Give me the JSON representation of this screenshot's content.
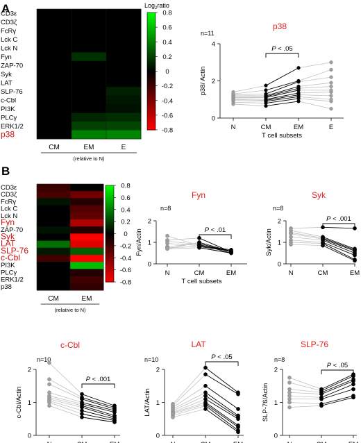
{
  "panels": {
    "A": {
      "letter": "A"
    },
    "B": {
      "letter": "B"
    }
  },
  "colors": {
    "high": "#00ff00",
    "mid": "#000000",
    "low": "#ff0000",
    "highlight_label": "#d01010",
    "open_point": "#a0a0a0",
    "open_line": "#c0c0c0",
    "filled_point": "#000000",
    "title": "#e02020"
  },
  "chart_data": [
    {
      "id": "heatmap-A",
      "type": "heatmap",
      "rows": [
        "CD3ε",
        "CD3ζ",
        "FcRγ",
        "Lck C",
        "Lck N",
        "Fyn",
        "ZAP-70",
        "Syk",
        "LAT",
        "SLP-76",
        "c-Cbl",
        "PI3K",
        "PLCγ",
        "ERK1/2",
        "p38"
      ],
      "highlight_rows": [
        "p38"
      ],
      "columns": [
        "CM",
        "EM",
        "E"
      ],
      "values": [
        [
          0,
          0,
          0
        ],
        [
          0,
          0,
          0
        ],
        [
          0,
          0,
          0
        ],
        [
          0,
          0,
          0
        ],
        [
          0,
          0,
          0
        ],
        [
          0,
          0.15,
          0
        ],
        [
          0,
          0,
          0
        ],
        [
          0,
          0,
          0
        ],
        [
          0,
          0,
          0
        ],
        [
          0,
          0,
          0.1
        ],
        [
          0,
          0,
          0.07
        ],
        [
          0,
          0,
          0.05
        ],
        [
          0,
          0.12,
          0.14
        ],
        [
          0,
          0.2,
          0.22
        ],
        [
          0,
          0.4,
          0.42
        ]
      ],
      "colorbar": {
        "title": "Log",
        "title_sub": "2",
        "title_suffix": "ratio",
        "ticks": [
          "0.8",
          "0.6",
          "0.4",
          "0.2",
          "0",
          "-0.2",
          "-0.4",
          "-0.6",
          "-0.8"
        ],
        "range": [
          -0.8,
          0.8
        ]
      },
      "footnote": "(relative to N)"
    },
    {
      "id": "p38",
      "type": "scatter",
      "title": "p38",
      "n_label": "n=11",
      "ylabel": "p38/ Actin",
      "xlabel": "T cell subsets",
      "categories": [
        "N",
        "CM",
        "EM",
        "E"
      ],
      "ylim": [
        0,
        4
      ],
      "yticks": [
        "0",
        "2",
        "4"
      ],
      "pvalue": "P < .05",
      "bracket": [
        "CM",
        "EM"
      ],
      "series": [
        {
          "category": "N",
          "style": "open",
          "values": [
            0.75,
            0.85,
            0.95,
            1.0,
            1.05,
            1.1,
            1.15,
            1.2,
            1.25,
            1.3,
            1.4
          ]
        },
        {
          "category": "CM",
          "style": "filled",
          "values": [
            0.65,
            0.8,
            0.9,
            0.95,
            1.0,
            1.1,
            1.15,
            1.2,
            1.3,
            1.5,
            1.75
          ]
        },
        {
          "category": "EM",
          "style": "filled",
          "values": [
            0.9,
            1.05,
            1.15,
            1.25,
            1.35,
            1.5,
            1.6,
            1.7,
            1.95,
            2.0,
            2.7
          ]
        },
        {
          "category": "E",
          "style": "open",
          "values": [
            0.5,
            0.9,
            1.0,
            1.2,
            1.4,
            1.5,
            1.7,
            1.9,
            2.2,
            2.6,
            3.0
          ]
        }
      ]
    },
    {
      "id": "heatmap-B",
      "type": "heatmap",
      "rows": [
        "CD3ε",
        "CD3ζ",
        "FcRγ",
        "Lck C",
        "Lck N",
        "Fyn",
        "ZAP-70",
        "Syk",
        "LAT",
        "SLP-76",
        "c-Cbl",
        "PI3K",
        "PLCγ",
        "ERK1/2",
        "p38"
      ],
      "highlight_rows": [
        "Fyn",
        "Syk",
        "LAT",
        "SLP-76",
        "c-Cbl"
      ],
      "columns": [
        "CM",
        "EM"
      ],
      "values": [
        [
          -0.18,
          0
        ],
        [
          -0.22,
          -0.35
        ],
        [
          0.06,
          -0.12
        ],
        [
          0,
          -0.25
        ],
        [
          0,
          -0.3
        ],
        [
          0,
          -0.55
        ],
        [
          0.06,
          -0.1
        ],
        [
          0,
          -0.8
        ],
        [
          0.35,
          -0.7
        ],
        [
          0.08,
          0.3
        ],
        [
          -0.2,
          -0.8
        ],
        [
          0,
          0.6
        ],
        [
          0,
          -0.1
        ],
        [
          0,
          -0.2
        ],
        [
          0,
          -0.15
        ]
      ],
      "colorbar": {
        "ticks": [
          "0.8",
          "0.6",
          "0.4",
          "0.2",
          "0",
          "-0.2",
          "-0.4",
          "-0.6",
          "-0.8"
        ],
        "range": [
          -0.8,
          0.8
        ]
      },
      "footnote": "(relative to N)"
    },
    {
      "id": "fyn",
      "type": "scatter",
      "title": "Fyn",
      "n_label": "n=8",
      "ylabel": "Fyn/Actin",
      "xlabel": "T cell subsets",
      "categories": [
        "N",
        "CM",
        "EM"
      ],
      "ylim": [
        0,
        2
      ],
      "yticks": [
        "0",
        "1",
        "2"
      ],
      "pvalue": "P < .01",
      "bracket": [
        "CM",
        "EM"
      ],
      "paired": {
        "N": [
          1.3,
          1.1,
          1.05,
          0.95,
          0.8,
          0.75,
          0.7,
          0.7
        ],
        "CM": [
          0.85,
          1.2,
          0.9,
          0.85,
          0.95,
          0.8,
          0.75,
          1.0
        ],
        "EM": [
          0.6,
          0.55,
          0.5,
          0.65,
          0.55,
          0.6,
          0.5,
          0.58
        ]
      }
    },
    {
      "id": "syk",
      "type": "scatter",
      "title": "Syk",
      "n_label": "n=8",
      "ylabel": "Syk/Actin",
      "xlabel": "",
      "categories": [
        "N",
        "CM",
        "EM"
      ],
      "ylim": [
        0,
        2
      ],
      "yticks": [
        "0",
        "1",
        "2"
      ],
      "pvalue": "P < .001",
      "bracket": [
        "CM",
        "EM"
      ],
      "paired": {
        "N": [
          1.65,
          1.55,
          1.45,
          1.4,
          1.25,
          1.1,
          1.0,
          0.9
        ],
        "CM": [
          1.7,
          1.25,
          1.2,
          1.15,
          1.1,
          1.0,
          0.95,
          0.85
        ],
        "EM": [
          1.65,
          0.7,
          0.65,
          0.6,
          0.5,
          0.4,
          0.2,
          0.15
        ]
      }
    },
    {
      "id": "c-cbl",
      "type": "scatter",
      "title": "c-Cbl",
      "n_label": "n=10",
      "ylabel": "c-Cbl/Actin",
      "xlabel": "",
      "categories": [
        "N",
        "CM",
        "EM"
      ],
      "ylim": [
        0,
        2
      ],
      "yticks": [
        "0",
        "1",
        "2"
      ],
      "pvalue": "P < .001",
      "bracket": [
        "CM",
        "EM"
      ],
      "paired": {
        "N": [
          2.2,
          1.7,
          1.55,
          1.3,
          1.2,
          1.15,
          1.1,
          1.05,
          1.0,
          0.9
        ],
        "CM": [
          1.25,
          1.15,
          1.1,
          1.0,
          0.95,
          0.9,
          0.85,
          0.75,
          0.65,
          0.55
        ],
        "EM": [
          0.9,
          0.85,
          0.8,
          0.75,
          0.7,
          0.6,
          0.55,
          0.5,
          0.45,
          0.4
        ]
      }
    },
    {
      "id": "lat",
      "type": "scatter",
      "title": "LAT",
      "n_label": "n=10",
      "ylabel": "LAT/Actin",
      "xlabel": "",
      "categories": [
        "N",
        "CM",
        "EM"
      ],
      "ylim": [
        0,
        2
      ],
      "yticks": [
        "0",
        "1",
        "2"
      ],
      "pvalue": "P < .05",
      "bracket": [
        "CM",
        "EM"
      ],
      "paired": {
        "N": [
          0.95,
          0.9,
          0.85,
          0.8,
          0.75,
          0.7,
          0.68,
          0.65,
          0.6,
          0.55
        ],
        "CM": [
          2.05,
          1.85,
          1.5,
          1.3,
          1.2,
          1.1,
          1.0,
          0.95,
          0.9,
          0.8
        ],
        "EM": [
          1.3,
          1.25,
          0.8,
          0.6,
          0.55,
          0.5,
          0.3,
          0.25,
          0.15,
          0.1
        ]
      }
    },
    {
      "id": "slp-76",
      "type": "scatter",
      "title": "SLP-76",
      "n_label": "n=8",
      "ylabel": "SLP-76/Actin",
      "xlabel": "",
      "categories": [
        "N",
        "CM",
        "EM"
      ],
      "ylim": [
        0,
        2
      ],
      "yticks": [
        "0",
        "1",
        "2"
      ],
      "pvalue": "P < .05",
      "bracket": [
        "CM",
        "EM"
      ],
      "paired": {
        "N": [
          1.75,
          1.6,
          1.4,
          1.3,
          1.2,
          1.1,
          1.0,
          0.85
        ],
        "CM": [
          1.4,
          1.35,
          1.3,
          1.25,
          1.15,
          1.1,
          0.95,
          0.9
        ],
        "EM": [
          1.85,
          1.8,
          1.7,
          1.65,
          1.55,
          1.4,
          1.2,
          1.15
        ]
      }
    }
  ]
}
